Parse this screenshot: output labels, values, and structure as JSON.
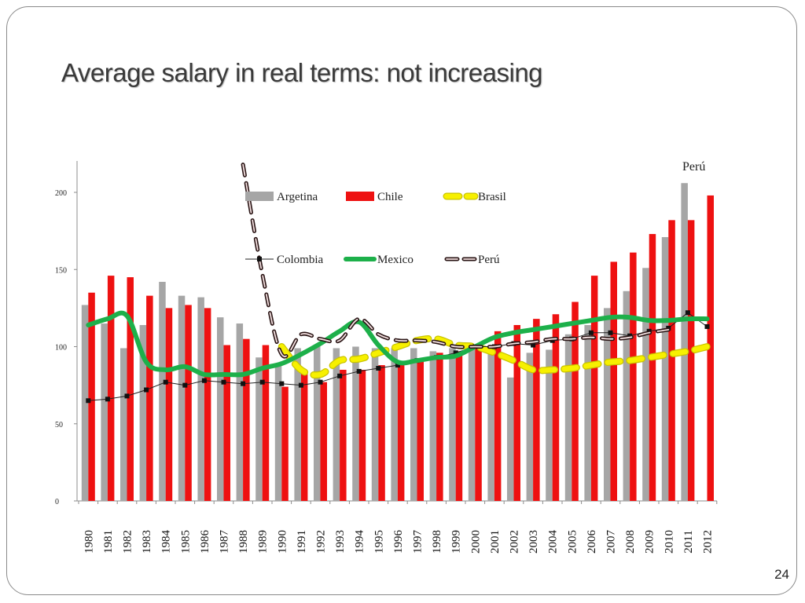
{
  "slide": {
    "title": "Average salary in real  terms: not increasing",
    "page_number": "24"
  },
  "chart_data": {
    "type": "bar",
    "title": "",
    "xlabel": "",
    "ylabel": "",
    "ylim": [
      0,
      220
    ],
    "yticks": [
      0,
      50,
      100,
      150,
      200
    ],
    "grid": false,
    "legend_position": "top-center",
    "categories": [
      "1980",
      "1981",
      "1982",
      "1983",
      "1984",
      "1985",
      "1986",
      "1987",
      "1988",
      "1989",
      "1990",
      "1991",
      "1992",
      "1993",
      "1994",
      "1995",
      "1996",
      "1997",
      "1998",
      "1999",
      "2000",
      "2001",
      "2002",
      "2003",
      "2004",
      "2005",
      "2006",
      "2007",
      "2008",
      "2009",
      "2010",
      "2011",
      "2012"
    ],
    "annotation": "Perú",
    "series": [
      {
        "name": "Argetina",
        "kind": "bar",
        "color": "#a6a6a6",
        "values": [
          127,
          115,
          99,
          114,
          142,
          133,
          132,
          119,
          115,
          93,
          88,
          99,
          101,
          99,
          100,
          99,
          99,
          99,
          97,
          99,
          101,
          100,
          80,
          96,
          98,
          108,
          114,
          125,
          136,
          151,
          171,
          206,
          null
        ]
      },
      {
        "name": "Chile",
        "kind": "bar",
        "color": "#ee1111",
        "values": [
          135,
          146,
          145,
          133,
          125,
          127,
          125,
          101,
          105,
          101,
          74,
          84,
          77,
          85,
          85,
          88,
          90,
          92,
          96,
          97,
          100,
          110,
          114,
          118,
          121,
          129,
          146,
          155,
          161,
          173,
          182,
          182,
          198
        ]
      },
      {
        "name": "Brasil",
        "kind": "line",
        "color": "#f5f000",
        "style": "dashed-thick",
        "values": [
          null,
          null,
          null,
          null,
          null,
          null,
          null,
          null,
          null,
          null,
          100,
          85,
          82,
          91,
          92,
          96,
          100,
          104,
          105,
          101,
          100,
          96,
          91,
          85,
          85,
          86,
          88,
          90,
          91,
          93,
          95,
          97,
          100
        ]
      },
      {
        "name": "Colombia",
        "kind": "line",
        "color": "#111111",
        "style": "thin-markers",
        "values": [
          65,
          66,
          68,
          72,
          77,
          75,
          78,
          77,
          76,
          77,
          76,
          75,
          77,
          81,
          84,
          86,
          88,
          91,
          93,
          96,
          100,
          100,
          102,
          101,
          104,
          105,
          109,
          109,
          107,
          110,
          112,
          122,
          113
        ]
      },
      {
        "name": "Mexico",
        "kind": "line",
        "color": "#1db04a",
        "style": "thick-smooth",
        "values": [
          114,
          118,
          120,
          90,
          85,
          87,
          82,
          82,
          82,
          86,
          89,
          95,
          102,
          110,
          116,
          101,
          90,
          91,
          93,
          94,
          100,
          106,
          109,
          111,
          113,
          115,
          117,
          119,
          119,
          117,
          117,
          118,
          118
        ]
      },
      {
        "name": "Perú",
        "kind": "line",
        "color": "#3a2020",
        "style": "dashed",
        "values": [
          null,
          null,
          null,
          null,
          null,
          null,
          null,
          null,
          218,
          147,
          95,
          108,
          105,
          104,
          118,
          108,
          104,
          104,
          103,
          100,
          100,
          100,
          102,
          103,
          105,
          105,
          106,
          105,
          106,
          109,
          111,
          null,
          null
        ]
      }
    ]
  }
}
